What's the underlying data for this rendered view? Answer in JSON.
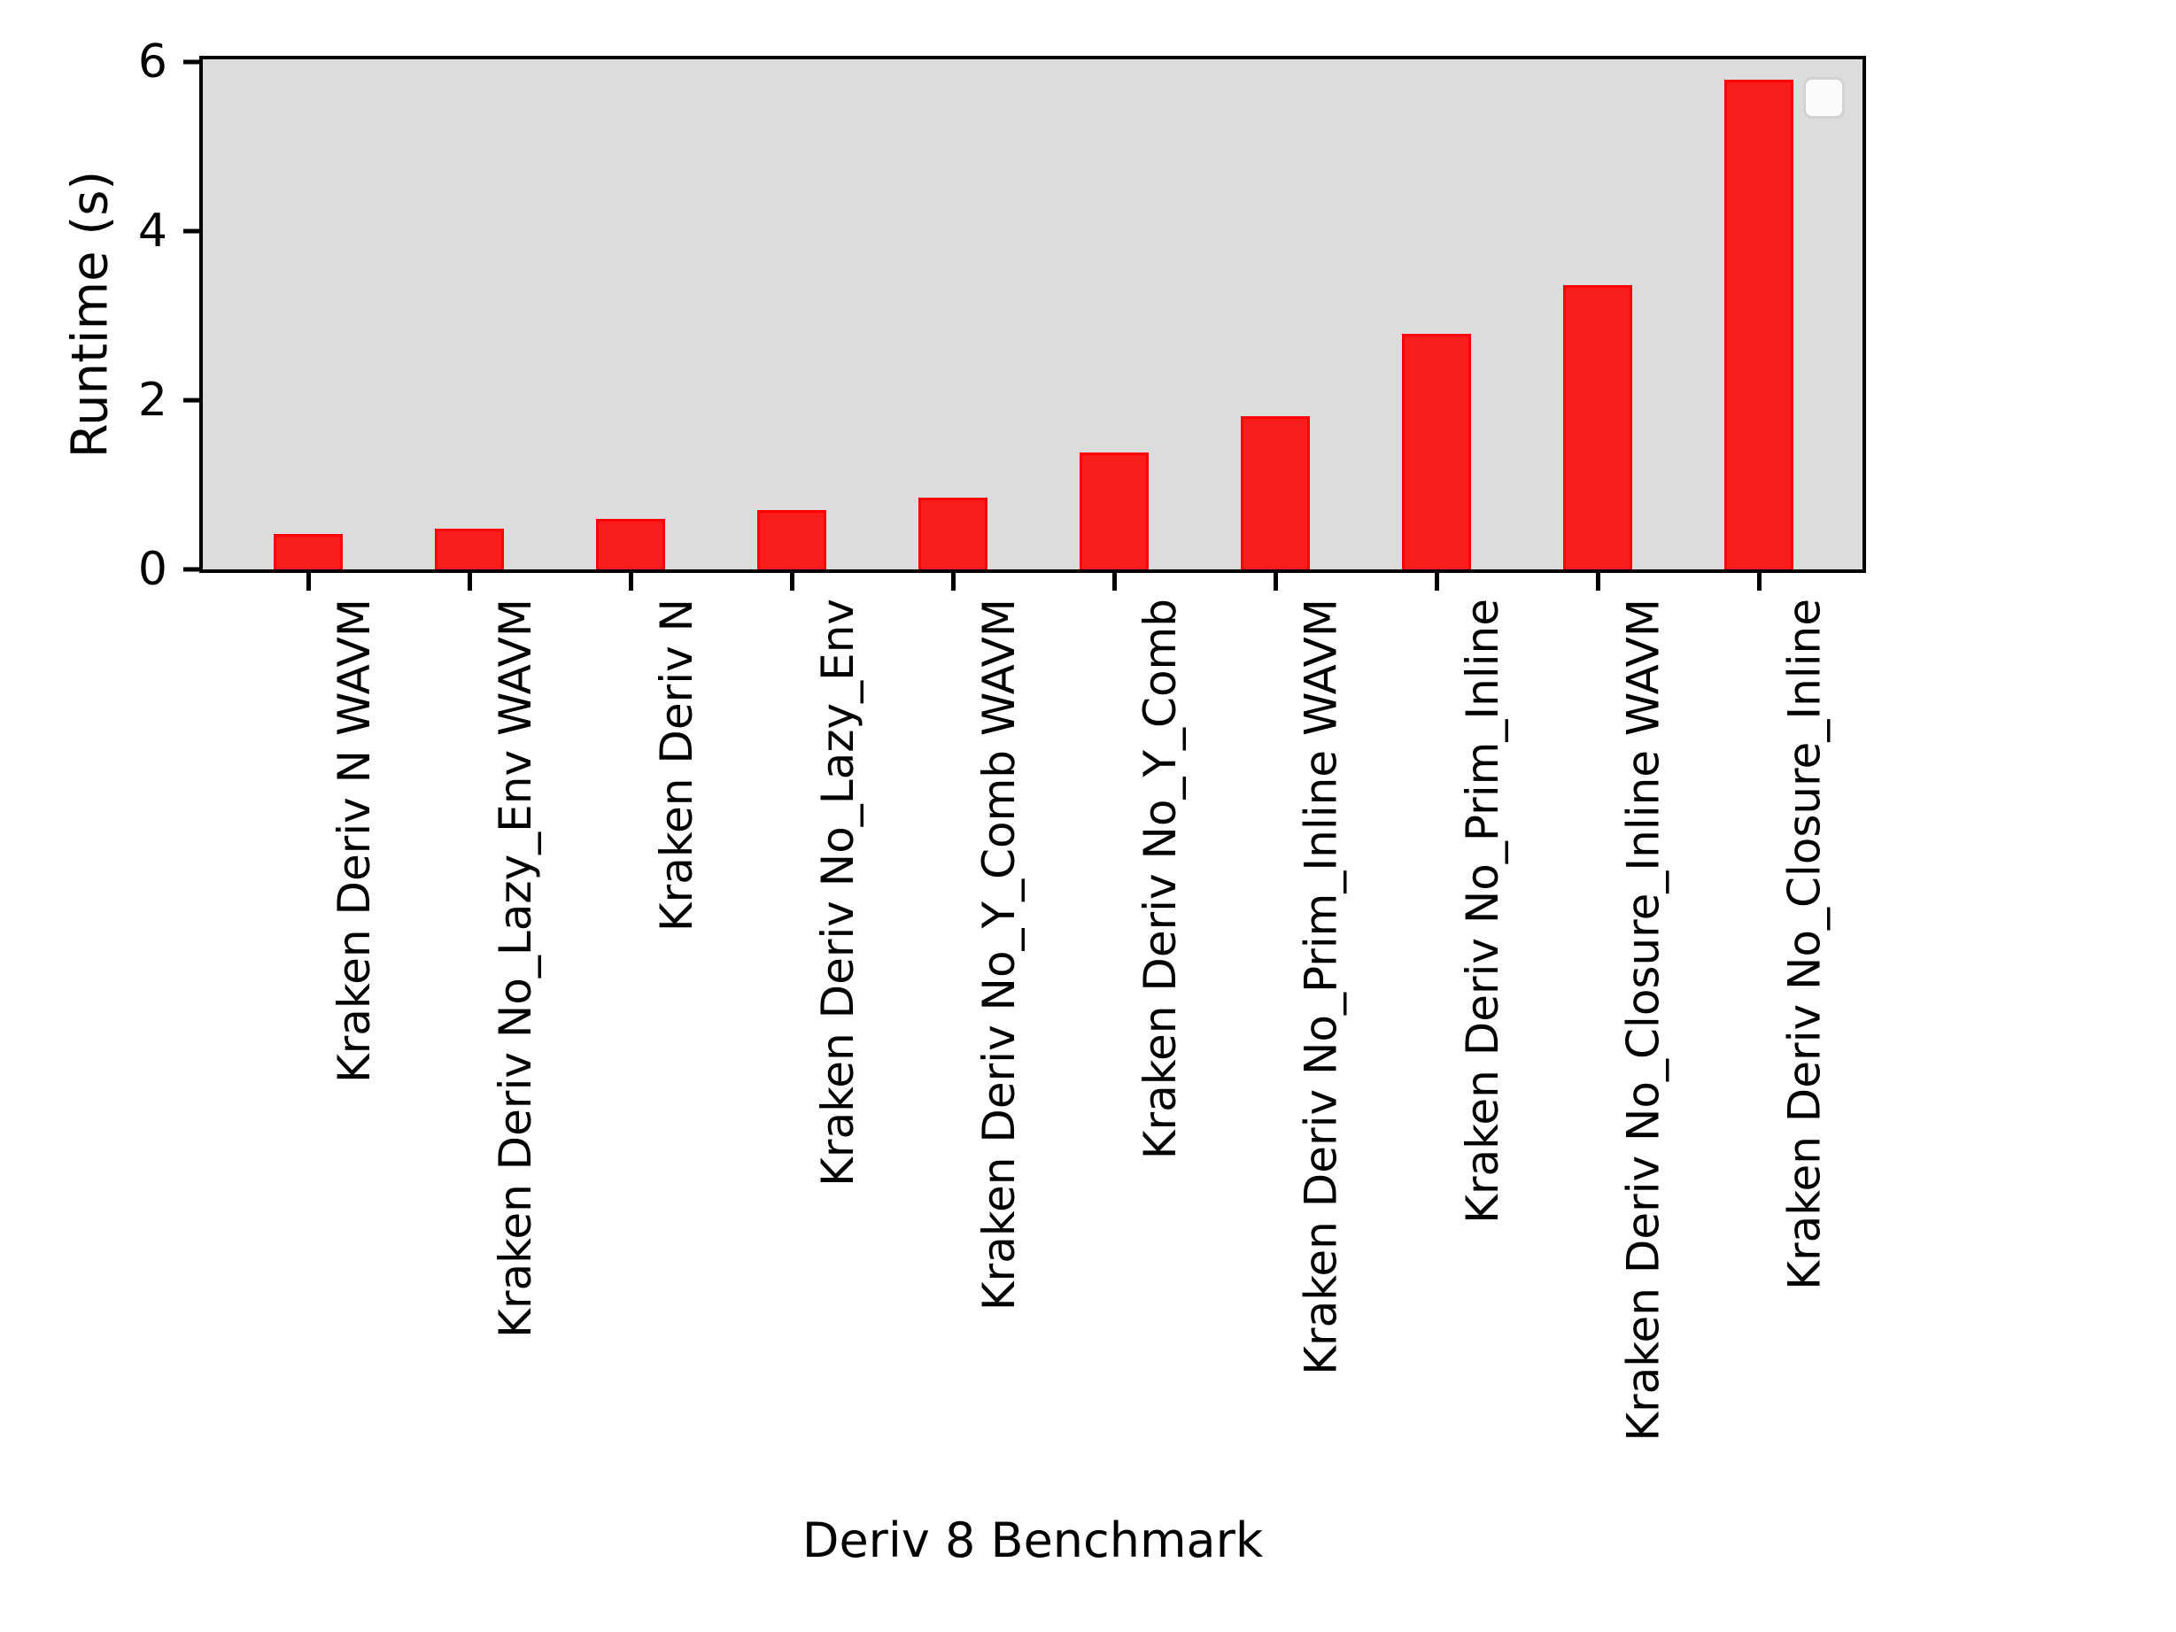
{
  "chart_data": {
    "type": "bar",
    "title": "",
    "xlabel": "Deriv 8 Benchmark",
    "ylabel": "Runtime (s)",
    "categories": [
      "Kraken Deriv N WAVM",
      "Kraken Deriv No_Lazy_Env WAVM",
      "Kraken Deriv N",
      "Kraken Deriv No_Lazy_Env",
      "Kraken Deriv No_Y_Comb WAVM",
      "Kraken Deriv No_Y_Comb",
      "Kraken Deriv No_Prim_Inline WAVM",
      "Kraken Deriv No_Prim_Inline",
      "Kraken Deriv No_Closure_Inline WAVM",
      "Kraken Deriv No_Closure_Inline"
    ],
    "values": [
      0.42,
      0.48,
      0.6,
      0.7,
      0.85,
      1.38,
      1.81,
      2.79,
      3.36,
      5.79
    ],
    "yticks": [
      0,
      2,
      4,
      6
    ],
    "ylim": [
      0,
      6.03
    ],
    "grid": false,
    "tick_rotation_deg": 90,
    "legend": {
      "visible": true,
      "entries": [],
      "position": "upper-right"
    },
    "colors": {
      "bar_fill": "#f71d1d",
      "bar_edge": "#ff0000",
      "plot_background": "#dcdcdc",
      "figure_background": "#ffffff",
      "spine": "#000000",
      "legend_fill": "#fbfbfb",
      "legend_border": "#d2d2d2",
      "text": "#000000"
    }
  }
}
